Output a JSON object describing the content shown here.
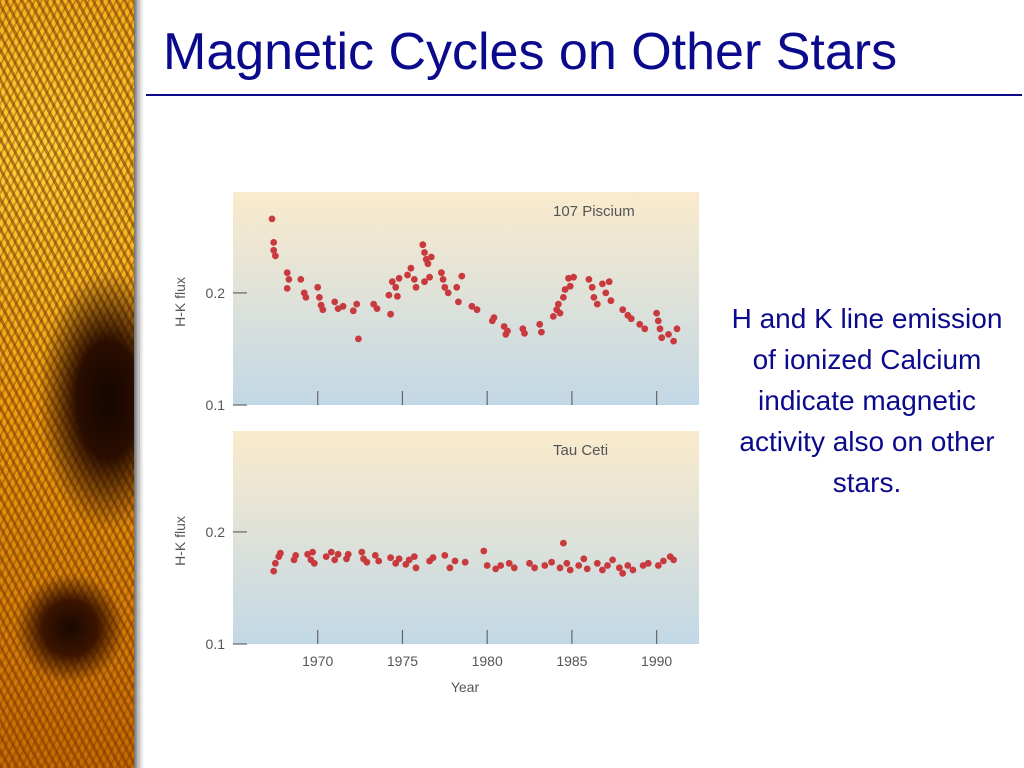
{
  "slide": {
    "title": "Magnetic Cycles on Other Stars",
    "caption": "H and K line emission of ionized Calcium indicate magnetic activity also on other stars."
  },
  "colors": {
    "title": "#0b0a8c",
    "points": "#c83a3e",
    "panel_top": "#faebcc",
    "panel_bottom": "#c2d8e6"
  },
  "chart_data": [
    {
      "type": "scatter",
      "title": "107 Piscium",
      "ylabel": "H-K flux",
      "xlabel": "",
      "xlim": [
        1965,
        1992.5
      ],
      "ylim": [
        0.1,
        0.29
      ],
      "yticks": [
        {
          "value": 0.1,
          "label": "0.1"
        },
        {
          "value": 0.2,
          "label": "0.2"
        }
      ],
      "xticks": [
        {
          "value": 1970,
          "label": ""
        },
        {
          "value": 1975,
          "label": ""
        },
        {
          "value": 1980,
          "label": ""
        },
        {
          "value": 1985,
          "label": ""
        },
        {
          "value": 1990,
          "label": ""
        }
      ],
      "points": [
        [
          1967.3,
          0.266
        ],
        [
          1967.4,
          0.245
        ],
        [
          1967.4,
          0.238
        ],
        [
          1967.5,
          0.233
        ],
        [
          1968.2,
          0.218
        ],
        [
          1968.3,
          0.212
        ],
        [
          1968.2,
          0.204
        ],
        [
          1969.0,
          0.212
        ],
        [
          1969.2,
          0.2
        ],
        [
          1969.3,
          0.196
        ],
        [
          1970.0,
          0.205
        ],
        [
          1970.1,
          0.196
        ],
        [
          1970.2,
          0.189
        ],
        [
          1970.3,
          0.185
        ],
        [
          1971.0,
          0.192
        ],
        [
          1971.2,
          0.186
        ],
        [
          1971.5,
          0.188
        ],
        [
          1972.1,
          0.184
        ],
        [
          1972.3,
          0.19
        ],
        [
          1972.4,
          0.159
        ],
        [
          1973.3,
          0.19
        ],
        [
          1973.5,
          0.186
        ],
        [
          1974.2,
          0.198
        ],
        [
          1974.3,
          0.181
        ],
        [
          1974.4,
          0.21
        ],
        [
          1974.6,
          0.205
        ],
        [
          1974.8,
          0.213
        ],
        [
          1974.7,
          0.197
        ],
        [
          1975.3,
          0.216
        ],
        [
          1975.5,
          0.222
        ],
        [
          1975.7,
          0.212
        ],
        [
          1975.8,
          0.205
        ],
        [
          1976.2,
          0.243
        ],
        [
          1976.3,
          0.236
        ],
        [
          1976.4,
          0.23
        ],
        [
          1976.5,
          0.226
        ],
        [
          1976.7,
          0.232
        ],
        [
          1976.3,
          0.21
        ],
        [
          1976.6,
          0.214
        ],
        [
          1977.3,
          0.218
        ],
        [
          1977.4,
          0.212
        ],
        [
          1977.5,
          0.205
        ],
        [
          1977.7,
          0.2
        ],
        [
          1978.2,
          0.205
        ],
        [
          1978.3,
          0.192
        ],
        [
          1978.5,
          0.215
        ],
        [
          1979.1,
          0.188
        ],
        [
          1979.4,
          0.185
        ],
        [
          1980.3,
          0.175
        ],
        [
          1980.4,
          0.178
        ],
        [
          1981.0,
          0.17
        ],
        [
          1981.1,
          0.163
        ],
        [
          1981.2,
          0.166
        ],
        [
          1982.1,
          0.168
        ],
        [
          1982.2,
          0.164
        ],
        [
          1983.1,
          0.172
        ],
        [
          1983.2,
          0.165
        ],
        [
          1983.9,
          0.179
        ],
        [
          1984.1,
          0.185
        ],
        [
          1984.2,
          0.19
        ],
        [
          1984.3,
          0.182
        ],
        [
          1984.5,
          0.196
        ],
        [
          1984.6,
          0.203
        ],
        [
          1984.8,
          0.213
        ],
        [
          1984.9,
          0.206
        ],
        [
          1985.1,
          0.214
        ],
        [
          1986.0,
          0.212
        ],
        [
          1986.2,
          0.205
        ],
        [
          1986.3,
          0.196
        ],
        [
          1986.5,
          0.19
        ],
        [
          1986.8,
          0.208
        ],
        [
          1987.0,
          0.2
        ],
        [
          1987.3,
          0.193
        ],
        [
          1987.2,
          0.21
        ],
        [
          1988.0,
          0.185
        ],
        [
          1988.3,
          0.18
        ],
        [
          1988.5,
          0.177
        ],
        [
          1989.0,
          0.172
        ],
        [
          1989.3,
          0.168
        ],
        [
          1990.0,
          0.182
        ],
        [
          1990.1,
          0.175
        ],
        [
          1990.2,
          0.168
        ],
        [
          1990.3,
          0.16
        ],
        [
          1990.7,
          0.163
        ],
        [
          1991.0,
          0.157
        ],
        [
          1991.2,
          0.168
        ]
      ]
    },
    {
      "type": "scatter",
      "title": "Tau Ceti",
      "ylabel": "H-K flux",
      "xlabel": "Year",
      "xlim": [
        1965,
        1992.5
      ],
      "ylim": [
        0.1,
        0.29
      ],
      "yticks": [
        {
          "value": 0.1,
          "label": "0.1"
        },
        {
          "value": 0.2,
          "label": "0.2"
        }
      ],
      "xticks": [
        {
          "value": 1970,
          "label": "1970"
        },
        {
          "value": 1975,
          "label": "1975"
        },
        {
          "value": 1980,
          "label": "1980"
        },
        {
          "value": 1985,
          "label": "1985"
        },
        {
          "value": 1990,
          "label": "1990"
        }
      ],
      "points": [
        [
          1967.4,
          0.165
        ],
        [
          1967.5,
          0.172
        ],
        [
          1967.7,
          0.178
        ],
        [
          1967.8,
          0.181
        ],
        [
          1968.6,
          0.175
        ],
        [
          1968.7,
          0.179
        ],
        [
          1969.4,
          0.18
        ],
        [
          1969.6,
          0.175
        ],
        [
          1969.7,
          0.182
        ],
        [
          1969.8,
          0.172
        ],
        [
          1970.5,
          0.178
        ],
        [
          1970.8,
          0.182
        ],
        [
          1971.0,
          0.175
        ],
        [
          1971.2,
          0.18
        ],
        [
          1971.7,
          0.176
        ],
        [
          1971.8,
          0.18
        ],
        [
          1972.6,
          0.182
        ],
        [
          1972.7,
          0.176
        ],
        [
          1972.9,
          0.173
        ],
        [
          1973.4,
          0.179
        ],
        [
          1973.6,
          0.174
        ],
        [
          1974.3,
          0.177
        ],
        [
          1974.6,
          0.172
        ],
        [
          1974.8,
          0.176
        ],
        [
          1975.2,
          0.171
        ],
        [
          1975.4,
          0.175
        ],
        [
          1975.7,
          0.178
        ],
        [
          1975.8,
          0.168
        ],
        [
          1976.6,
          0.174
        ],
        [
          1976.8,
          0.177
        ],
        [
          1977.5,
          0.179
        ],
        [
          1977.8,
          0.168
        ],
        [
          1978.1,
          0.174
        ],
        [
          1978.7,
          0.173
        ],
        [
          1979.8,
          0.183
        ],
        [
          1980.0,
          0.17
        ],
        [
          1980.5,
          0.167
        ],
        [
          1980.8,
          0.17
        ],
        [
          1981.3,
          0.172
        ],
        [
          1981.6,
          0.168
        ],
        [
          1982.5,
          0.172
        ],
        [
          1982.8,
          0.168
        ],
        [
          1983.4,
          0.17
        ],
        [
          1983.8,
          0.173
        ],
        [
          1984.3,
          0.168
        ],
        [
          1984.5,
          0.19
        ],
        [
          1984.7,
          0.172
        ],
        [
          1984.9,
          0.166
        ],
        [
          1985.4,
          0.17
        ],
        [
          1985.7,
          0.176
        ],
        [
          1985.9,
          0.167
        ],
        [
          1986.5,
          0.172
        ],
        [
          1986.8,
          0.166
        ],
        [
          1987.1,
          0.17
        ],
        [
          1987.4,
          0.175
        ],
        [
          1987.8,
          0.168
        ],
        [
          1988.0,
          0.163
        ],
        [
          1988.3,
          0.17
        ],
        [
          1988.6,
          0.166
        ],
        [
          1989.2,
          0.17
        ],
        [
          1989.5,
          0.172
        ],
        [
          1990.1,
          0.17
        ],
        [
          1990.4,
          0.174
        ],
        [
          1990.8,
          0.178
        ],
        [
          1991.0,
          0.175
        ]
      ]
    }
  ]
}
